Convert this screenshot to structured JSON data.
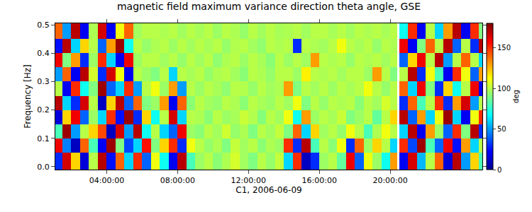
{
  "chart_data": {
    "type": "heatmap",
    "title": "magnetic field maximum variance direction theta angle, GSE",
    "x_label": "C1, 2006-06-09",
    "y_label": "Frequency [Hz]",
    "z_label": "deg",
    "xlim": [
      1.1,
      25.2
    ],
    "ylim": [
      -0.01,
      0.505
    ],
    "xticks": [
      {
        "value": 4,
        "label": "04:00:00"
      },
      {
        "value": 8,
        "label": "08:00:00"
      },
      {
        "value": 12,
        "label": "12:00:00"
      },
      {
        "value": 16,
        "label": "16:00:00"
      },
      {
        "value": 20,
        "label": "20:00:00"
      }
    ],
    "yticks": [
      {
        "value": 0,
        "label": "0.0"
      },
      {
        "value": 0.1,
        "label": "0.1"
      },
      {
        "value": 0.2,
        "label": "0.2"
      },
      {
        "value": 0.3,
        "label": "0.3"
      },
      {
        "value": 0.4,
        "label": "0.4"
      },
      {
        "value": 0.5,
        "label": "0.5"
      }
    ],
    "zlim": [
      0,
      180
    ],
    "zticks": [
      0,
      50,
      100,
      150
    ],
    "x_bins": [
      1.1,
      1.5,
      2,
      2.5,
      3,
      3.5,
      4,
      4.5,
      5,
      5.5,
      6,
      6.5,
      7,
      7.5,
      8,
      8.5,
      9,
      9.5,
      10,
      10.5,
      11,
      11.5,
      12,
      12.5,
      13,
      13.5,
      14,
      14.5,
      15,
      15.5,
      16,
      16.5,
      17,
      17.5,
      18,
      18.5,
      19,
      19.5,
      20,
      20.4,
      20.5,
      21,
      21.5,
      22,
      22.5,
      23,
      23.5,
      24,
      24.5,
      25,
      25.2
    ],
    "y_bins": [
      -0.01,
      0.05,
      0.1,
      0.15,
      0.2,
      0.25,
      0.3,
      0.35,
      0.4,
      0.45,
      0.505
    ],
    "cells": [
      [
        30,
        165,
        120,
        15,
        100,
        170,
        25,
        140,
        60,
        150,
        40,
        110,
        70,
        20,
        170,
        80,
        95,
        100,
        92,
        98,
        105,
        96,
        90,
        100,
        94,
        102,
        60,
        150,
        10,
        30,
        95,
        100,
        85,
        160,
        40,
        110,
        95,
        70,
        130,
        null,
        20,
        165,
        55,
        100,
        140,
        15,
        170,
        50,
        120,
        80
      ],
      [
        160,
        45,
        10,
        140,
        80,
        20,
        175,
        90,
        35,
        60,
        155,
        90,
        120,
        150,
        30,
        110,
        100,
        94,
        98,
        90,
        102,
        96,
        100,
        92,
        98,
        95,
        150,
        30,
        170,
        80,
        100,
        92,
        110,
        30,
        140,
        95,
        120,
        100,
        60,
        null,
        150,
        35,
        175,
        80,
        40,
        160,
        25,
        130,
        60,
        100
      ],
      [
        80,
        175,
        50,
        100,
        120,
        145,
        10,
        165,
        50,
        170,
        70,
        100,
        60,
        40,
        160,
        95,
        92,
        100,
        96,
        104,
        94,
        98,
        90,
        100,
        96,
        102,
        90,
        140,
        60,
        120,
        96,
        100,
        94,
        110,
        100,
        80,
        98,
        110,
        100,
        null,
        60,
        170,
        20,
        130,
        95,
        40,
        150,
        90,
        170,
        30
      ],
      [
        15,
        120,
        160,
        40,
        95,
        60,
        150,
        25,
        175,
        30,
        120,
        70,
        100,
        165,
        60,
        100,
        98,
        92,
        100,
        95,
        97,
        103,
        99,
        91,
        100,
        96,
        110,
        70,
        130,
        95,
        100,
        97,
        103,
        90,
        95,
        100,
        85,
        100,
        120,
        null,
        170,
        40,
        130,
        60,
        110,
        175,
        60,
        20,
        110,
        150
      ],
      [
        170,
        60,
        30,
        165,
        100,
        10,
        120,
        170,
        40,
        140,
        90,
        95,
        130,
        20,
        140,
        92,
        100,
        96,
        94,
        100,
        98,
        92,
        100,
        97,
        95,
        100,
        96,
        110,
        90,
        100,
        94,
        100,
        98,
        100,
        92,
        100,
        96,
        105,
        100,
        null,
        30,
        140,
        80,
        100,
        150,
        30,
        130,
        165,
        50,
        100
      ],
      [
        100,
        20,
        150,
        70,
        90,
        175,
        40,
        60,
        150,
        50,
        100,
        110,
        95,
        130,
        50,
        100,
        95,
        100,
        97,
        93,
        100,
        99,
        94,
        100,
        96,
        98,
        130,
        90,
        100,
        96,
        100,
        95,
        100,
        97,
        100,
        110,
        100,
        94,
        100,
        null,
        140,
        60,
        160,
        90,
        30,
        120,
        70,
        100,
        160,
        20
      ],
      [
        50,
        140,
        20,
        170,
        105,
        30,
        165,
        110,
        20,
        100,
        95,
        90,
        100,
        60,
        100,
        97,
        100,
        94,
        98,
        100,
        96,
        92,
        100,
        98,
        94,
        100,
        100,
        95,
        115,
        100,
        98,
        100,
        96,
        100,
        100,
        95,
        130,
        100,
        90,
        null,
        100,
        170,
        30,
        110,
        80,
        20,
        150,
        110,
        40,
        130
      ],
      [
        160,
        90,
        130,
        30,
        95,
        150,
        60,
        20,
        160,
        95,
        100,
        100,
        96,
        100,
        94,
        100,
        96,
        100,
        93,
        98,
        100,
        95,
        100,
        97,
        92,
        100,
        95,
        100,
        96,
        130,
        100,
        98,
        100,
        94,
        100,
        98,
        100,
        96,
        100,
        null,
        40,
        120,
        160,
        100,
        170,
        50,
        100,
        140,
        100,
        60
      ],
      [
        25,
        170,
        60,
        120,
        100,
        40,
        130,
        175,
        70,
        100,
        94,
        98,
        100,
        95,
        100,
        96,
        100,
        97,
        100,
        94,
        99,
        100,
        96,
        93,
        100,
        98,
        100,
        30,
        100,
        98,
        96,
        100,
        110,
        100,
        97,
        100,
        94,
        100,
        98,
        null,
        160,
        20,
        90,
        140,
        100,
        170,
        40,
        100,
        30,
        170
      ],
      [
        140,
        50,
        170,
        20,
        98,
        165,
        20,
        110,
        140,
        96,
        100,
        100,
        98,
        100,
        96,
        100,
        97,
        100,
        95,
        100,
        98,
        94,
        100,
        96,
        100,
        97,
        98,
        100,
        96,
        100,
        100,
        97,
        100,
        96,
        100,
        98,
        100,
        97,
        100,
        null,
        70,
        150,
        20,
        100,
        60,
        130,
        170,
        20,
        150,
        90
      ]
    ]
  }
}
